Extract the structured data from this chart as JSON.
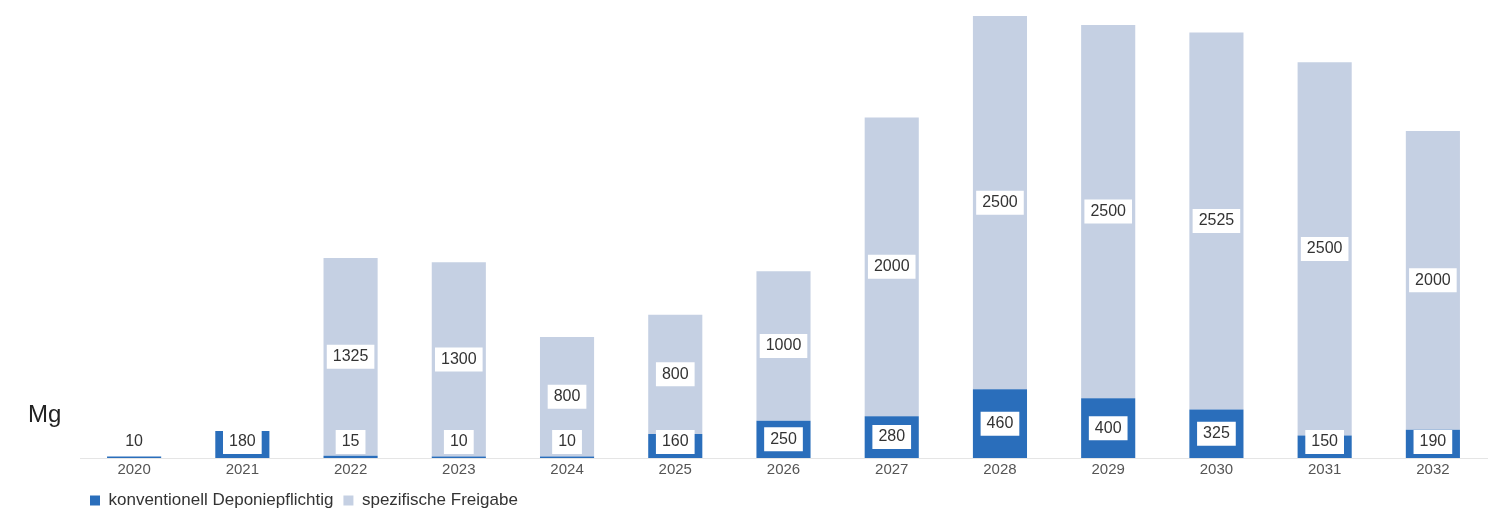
{
  "chart_data": {
    "type": "bar",
    "stacked": true,
    "ylabel": "Mg",
    "data_labels": true,
    "legend": "bottom left",
    "grid": false,
    "categories": [
      "2020",
      "2021",
      "2022",
      "2023",
      "2024",
      "2025",
      "2026",
      "2027",
      "2028",
      "2029",
      "2030",
      "2031",
      "2032"
    ],
    "series": [
      {
        "name": "konventionell Deponiepflichtig",
        "color": "#2a6ebb",
        "values": [
          10,
          180,
          15,
          10,
          10,
          160,
          250,
          280,
          460,
          400,
          325,
          150,
          190
        ]
      },
      {
        "name": "spezifische Freigabe",
        "color": "#c5d0e3",
        "values": [
          null,
          null,
          1325,
          1300,
          800,
          800,
          1000,
          2000,
          2500,
          2500,
          2525,
          2500,
          2000
        ]
      }
    ]
  }
}
